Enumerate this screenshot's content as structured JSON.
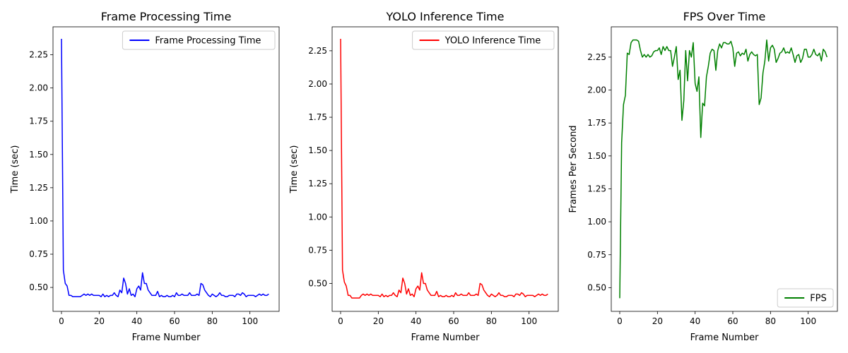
{
  "chart_data": [
    {
      "type": "line",
      "title": "Frame Processing Time",
      "xlabel": "Frame Number",
      "ylabel": "Time (sec)",
      "xlim": [
        -4.5,
        115.5
      ],
      "ylim": [
        0.32,
        2.46
      ],
      "xticks": [
        0,
        20,
        40,
        60,
        80,
        100
      ],
      "yticks": [
        0.5,
        0.75,
        1.0,
        1.25,
        1.5,
        1.75,
        2.0,
        2.25
      ],
      "ytick_labels": [
        "0.50",
        "0.75",
        "1.00",
        "1.25",
        "1.50",
        "1.75",
        "2.00",
        "2.25"
      ],
      "legend": "upper-right",
      "series": [
        {
          "name": "Frame Processing Time",
          "color": "#0000ff",
          "x": [
            0,
            1,
            2,
            3,
            4,
            5,
            6,
            7,
            8,
            9,
            10,
            11,
            12,
            13,
            14,
            15,
            16,
            17,
            18,
            19,
            20,
            21,
            22,
            23,
            24,
            25,
            26,
            27,
            28,
            29,
            30,
            31,
            32,
            33,
            34,
            35,
            36,
            37,
            38,
            39,
            40,
            41,
            42,
            43,
            44,
            45,
            46,
            47,
            48,
            49,
            50,
            51,
            52,
            53,
            54,
            55,
            56,
            57,
            58,
            59,
            60,
            61,
            62,
            63,
            64,
            65,
            66,
            67,
            68,
            69,
            70,
            71,
            72,
            73,
            74,
            75,
            76,
            77,
            78,
            79,
            80,
            81,
            82,
            83,
            84,
            85,
            86,
            87,
            88,
            89,
            90,
            91,
            92,
            93,
            94,
            95,
            96,
            97,
            98,
            99,
            100,
            101,
            102,
            103,
            104,
            105,
            106,
            107,
            108,
            109,
            110
          ],
          "values": [
            2.37,
            0.63,
            0.53,
            0.51,
            0.44,
            0.44,
            0.43,
            0.43,
            0.43,
            0.43,
            0.43,
            0.44,
            0.45,
            0.44,
            0.45,
            0.44,
            0.45,
            0.44,
            0.44,
            0.44,
            0.44,
            0.43,
            0.45,
            0.43,
            0.44,
            0.43,
            0.44,
            0.44,
            0.46,
            0.44,
            0.43,
            0.48,
            0.46,
            0.57,
            0.53,
            0.45,
            0.49,
            0.44,
            0.45,
            0.43,
            0.49,
            0.51,
            0.48,
            0.61,
            0.53,
            0.53,
            0.48,
            0.46,
            0.44,
            0.44,
            0.44,
            0.47,
            0.43,
            0.44,
            0.43,
            0.43,
            0.44,
            0.43,
            0.43,
            0.44,
            0.43,
            0.46,
            0.44,
            0.44,
            0.45,
            0.44,
            0.44,
            0.44,
            0.46,
            0.44,
            0.44,
            0.44,
            0.45,
            0.44,
            0.53,
            0.52,
            0.48,
            0.46,
            0.44,
            0.43,
            0.45,
            0.44,
            0.43,
            0.44,
            0.46,
            0.44,
            0.44,
            0.43,
            0.43,
            0.44,
            0.44,
            0.44,
            0.43,
            0.45,
            0.45,
            0.44,
            0.46,
            0.45,
            0.43,
            0.44,
            0.44,
            0.44,
            0.44,
            0.43,
            0.44,
            0.45,
            0.44,
            0.45,
            0.44,
            0.44,
            0.45
          ]
        }
      ]
    },
    {
      "type": "line",
      "title": "YOLO Inference Time",
      "xlabel": "Frame Number",
      "ylabel": "Time (sec)",
      "xlim": [
        -4.5,
        115.5
      ],
      "ylim": [
        0.29,
        2.43
      ],
      "xticks": [
        0,
        20,
        40,
        60,
        80,
        100
      ],
      "yticks": [
        0.5,
        0.75,
        1.0,
        1.25,
        1.5,
        1.75,
        2.0,
        2.25
      ],
      "ytick_labels": [
        "0.50",
        "0.75",
        "1.00",
        "1.25",
        "1.50",
        "1.75",
        "2.00",
        "2.25"
      ],
      "legend": "upper-right",
      "series": [
        {
          "name": "YOLO Inference Time",
          "color": "#ff0000",
          "x": [
            0,
            1,
            2,
            3,
            4,
            5,
            6,
            7,
            8,
            9,
            10,
            11,
            12,
            13,
            14,
            15,
            16,
            17,
            18,
            19,
            20,
            21,
            22,
            23,
            24,
            25,
            26,
            27,
            28,
            29,
            30,
            31,
            32,
            33,
            34,
            35,
            36,
            37,
            38,
            39,
            40,
            41,
            42,
            43,
            44,
            45,
            46,
            47,
            48,
            49,
            50,
            51,
            52,
            53,
            54,
            55,
            56,
            57,
            58,
            59,
            60,
            61,
            62,
            63,
            64,
            65,
            66,
            67,
            68,
            69,
            70,
            71,
            72,
            73,
            74,
            75,
            76,
            77,
            78,
            79,
            80,
            81,
            82,
            83,
            84,
            85,
            86,
            87,
            88,
            89,
            90,
            91,
            92,
            93,
            94,
            95,
            96,
            97,
            98,
            99,
            100,
            101,
            102,
            103,
            104,
            105,
            106,
            107,
            108,
            109,
            110
          ],
          "values": [
            2.34,
            0.6,
            0.51,
            0.48,
            0.41,
            0.41,
            0.39,
            0.39,
            0.39,
            0.39,
            0.39,
            0.41,
            0.42,
            0.41,
            0.42,
            0.41,
            0.42,
            0.41,
            0.41,
            0.41,
            0.41,
            0.4,
            0.42,
            0.4,
            0.41,
            0.4,
            0.41,
            0.41,
            0.43,
            0.41,
            0.4,
            0.45,
            0.43,
            0.54,
            0.5,
            0.42,
            0.46,
            0.41,
            0.42,
            0.4,
            0.46,
            0.48,
            0.45,
            0.58,
            0.5,
            0.5,
            0.45,
            0.43,
            0.41,
            0.41,
            0.41,
            0.44,
            0.4,
            0.41,
            0.4,
            0.4,
            0.41,
            0.4,
            0.4,
            0.41,
            0.4,
            0.43,
            0.41,
            0.41,
            0.42,
            0.41,
            0.41,
            0.41,
            0.43,
            0.41,
            0.41,
            0.41,
            0.42,
            0.41,
            0.5,
            0.49,
            0.45,
            0.43,
            0.41,
            0.4,
            0.42,
            0.41,
            0.4,
            0.41,
            0.43,
            0.41,
            0.41,
            0.4,
            0.4,
            0.41,
            0.41,
            0.41,
            0.4,
            0.42,
            0.42,
            0.41,
            0.43,
            0.42,
            0.4,
            0.41,
            0.41,
            0.41,
            0.41,
            0.4,
            0.41,
            0.42,
            0.41,
            0.42,
            0.41,
            0.41,
            0.42
          ]
        }
      ]
    },
    {
      "type": "line",
      "title": "FPS Over Time",
      "xlabel": "Frame Number",
      "ylabel": "Frames Per Second",
      "xlim": [
        -4.5,
        115.5
      ],
      "ylim": [
        0.32,
        2.48
      ],
      "xticks": [
        0,
        20,
        40,
        60,
        80,
        100
      ],
      "yticks": [
        0.5,
        0.75,
        1.0,
        1.25,
        1.5,
        1.75,
        2.0,
        2.25
      ],
      "ytick_labels": [
        "0.50",
        "0.75",
        "1.00",
        "1.25",
        "1.50",
        "1.75",
        "2.00",
        "2.25"
      ],
      "legend": "lower-right",
      "series": [
        {
          "name": "FPS",
          "color": "#008000",
          "x": [
            0,
            1,
            2,
            3,
            4,
            5,
            6,
            7,
            8,
            9,
            10,
            11,
            12,
            13,
            14,
            15,
            16,
            17,
            18,
            19,
            20,
            21,
            22,
            23,
            24,
            25,
            26,
            27,
            28,
            29,
            30,
            31,
            32,
            33,
            34,
            35,
            36,
            37,
            38,
            39,
            40,
            41,
            42,
            43,
            44,
            45,
            46,
            47,
            48,
            49,
            50,
            51,
            52,
            53,
            54,
            55,
            56,
            57,
            58,
            59,
            60,
            61,
            62,
            63,
            64,
            65,
            66,
            67,
            68,
            69,
            70,
            71,
            72,
            73,
            74,
            75,
            76,
            77,
            78,
            79,
            80,
            81,
            82,
            83,
            84,
            85,
            86,
            87,
            88,
            89,
            90,
            91,
            92,
            93,
            94,
            95,
            96,
            97,
            98,
            99,
            100,
            101,
            102,
            103,
            104,
            105,
            106,
            107,
            108,
            109,
            110
          ],
          "values": [
            0.42,
            1.6,
            1.89,
            1.96,
            2.28,
            2.27,
            2.36,
            2.38,
            2.38,
            2.38,
            2.37,
            2.3,
            2.25,
            2.27,
            2.25,
            2.27,
            2.25,
            2.26,
            2.29,
            2.3,
            2.3,
            2.32,
            2.27,
            2.33,
            2.3,
            2.33,
            2.3,
            2.3,
            2.18,
            2.25,
            2.33,
            2.08,
            2.15,
            1.77,
            1.92,
            2.3,
            2.07,
            2.3,
            2.25,
            2.36,
            2.05,
            1.99,
            2.1,
            1.64,
            1.9,
            1.88,
            2.1,
            2.18,
            2.28,
            2.31,
            2.3,
            2.15,
            2.3,
            2.35,
            2.32,
            2.36,
            2.36,
            2.35,
            2.35,
            2.37,
            2.32,
            2.18,
            2.28,
            2.29,
            2.26,
            2.28,
            2.27,
            2.31,
            2.22,
            2.27,
            2.29,
            2.27,
            2.26,
            2.27,
            1.89,
            1.94,
            2.13,
            2.22,
            2.38,
            2.22,
            2.32,
            2.34,
            2.31,
            2.21,
            2.24,
            2.28,
            2.29,
            2.32,
            2.28,
            2.29,
            2.28,
            2.32,
            2.27,
            2.21,
            2.26,
            2.27,
            2.21,
            2.24,
            2.31,
            2.31,
            2.25,
            2.25,
            2.27,
            2.31,
            2.27,
            2.26,
            2.28,
            2.22,
            2.31,
            2.29,
            2.25
          ]
        }
      ]
    }
  ]
}
